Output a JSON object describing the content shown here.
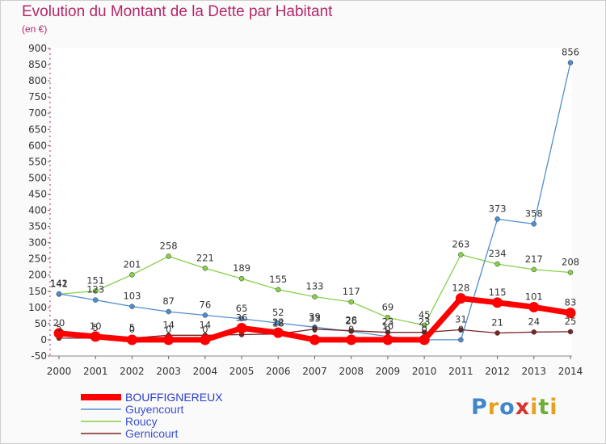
{
  "title": "Evolution du Montant de la Dette par Habitant",
  "subtitle": "(en €)",
  "logo": "Proxiti",
  "chart_data": {
    "type": "line",
    "x": [
      "2000",
      "2001",
      "2002",
      "2003",
      "2004",
      "2005",
      "2006",
      "2007",
      "2008",
      "2009",
      "2010",
      "2011",
      "2012",
      "2013",
      "2014"
    ],
    "ylim": [
      -50,
      900
    ],
    "yticks": [
      -50,
      0,
      50,
      100,
      150,
      200,
      250,
      300,
      350,
      400,
      450,
      500,
      550,
      600,
      650,
      700,
      750,
      800,
      850,
      900
    ],
    "grid": false,
    "legend_position": "bottom-left",
    "series": [
      {
        "name": "BOUFFIGNEREUX",
        "color": "#ff0000",
        "values": [
          20,
          10,
          0,
          0,
          0,
          36,
          22,
          0,
          0,
          0,
          0,
          128,
          115,
          101,
          83
        ],
        "labels": [
          "20",
          "10",
          "0",
          "0",
          "0",
          "36",
          "22",
          "0",
          "0",
          "0",
          "0",
          "128",
          "115",
          "101",
          "83"
        ]
      },
      {
        "name": "Guyencourt",
        "color": "#4f8ed0",
        "values": [
          142,
          123,
          103,
          87,
          76,
          65,
          52,
          39,
          26,
          10,
          0,
          0,
          373,
          358,
          856
        ],
        "labels": [
          "142",
          "123",
          "103",
          "87",
          "76",
          "65",
          "52",
          "39",
          "26",
          "10",
          "0",
          "0",
          "373",
          "358",
          "856"
        ]
      },
      {
        "name": "Roucy",
        "color": "#86d04a",
        "values": [
          141,
          151,
          201,
          258,
          221,
          189,
          155,
          133,
          117,
          69,
          45,
          263,
          234,
          217,
          208
        ],
        "labels": [
          "141",
          "151",
          "201",
          "258",
          "221",
          "189",
          "155",
          "133",
          "117",
          "69",
          "45",
          "263",
          "234",
          "217",
          "208"
        ]
      },
      {
        "name": "Gernicourt",
        "color": "#7a2424",
        "values": [
          5,
          5,
          5,
          14,
          14,
          16,
          18,
          33,
          28,
          23,
          23,
          31,
          21,
          24,
          25
        ],
        "labels": [
          "5",
          "5",
          "5",
          "14",
          "14",
          "",
          "18",
          "33",
          "28",
          "23",
          "23",
          "31",
          "21",
          "24",
          "25"
        ]
      }
    ]
  }
}
